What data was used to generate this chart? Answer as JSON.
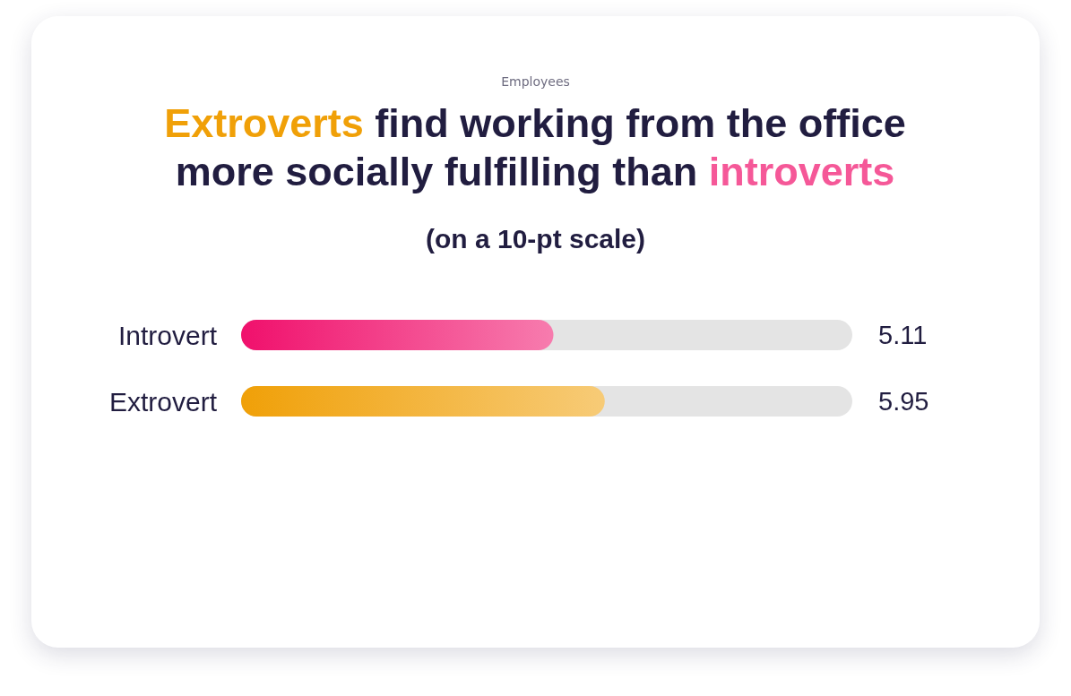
{
  "chart_data": {
    "type": "bar",
    "orientation": "horizontal",
    "title": "Extroverts find working from the office more socially fulfilling than introverts",
    "subtitle": "(on a 10-pt scale)",
    "annotations": [
      "Employees"
    ],
    "categories": [
      "Introvert",
      "Extrovert"
    ],
    "values": [
      5.11,
      5.95
    ],
    "colors": [
      "#f0106c",
      "#f0a008"
    ],
    "xlim": [
      0,
      10
    ],
    "data_labels": true,
    "tick_labels": "y"
  }
}
